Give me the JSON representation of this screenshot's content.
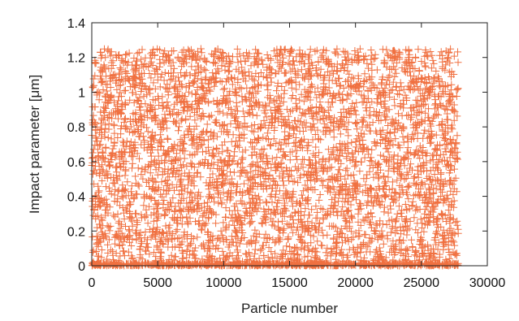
{
  "chart_data": {
    "type": "scatter",
    "title": "",
    "xlabel": "Particle number",
    "ylabel": "Impact parameter [μm]",
    "xlim": [
      0,
      30000
    ],
    "ylim": [
      0,
      1.4
    ],
    "x_ticks": [
      "0",
      "5000",
      "10000",
      "15000",
      "20000",
      "25000",
      "30000"
    ],
    "y_ticks": [
      "0",
      "0.2",
      "0.4",
      "0.6",
      "0.8",
      "1",
      "1.2",
      "1.4"
    ],
    "marker": "plus",
    "color": "#f07040",
    "grid": false,
    "legend": "none",
    "series": [
      {
        "description_of_distribution": "dense scatter, approx. uniform in impact parameter",
        "x_range": [
          0,
          27800
        ],
        "y_range": [
          0,
          1.25
        ],
        "approx_point_count": 27800
      }
    ]
  }
}
